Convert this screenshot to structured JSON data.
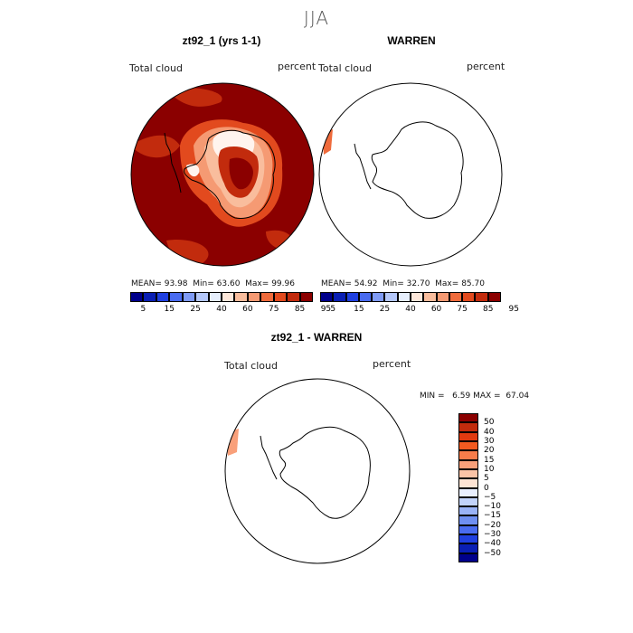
{
  "season": "JJA",
  "panels": [
    {
      "title": "zt92_1 (yrs 1-1)",
      "variable": "Total cloud",
      "units": "percent",
      "stats": {
        "mean_label": "MEAN=",
        "mean": "93.98",
        "min_label": "Min=",
        "min": "63.60",
        "max_label": "Max=",
        "max": "99.96"
      }
    },
    {
      "title": "WARREN",
      "variable": "Total cloud",
      "units": "percent",
      "stats": {
        "mean_label": "MEAN=",
        "mean": "54.92",
        "min_label": "Min=",
        "min": "32.70",
        "max_label": "Max=",
        "max": "85.70"
      }
    },
    {
      "title": "zt92_1 - WARREN",
      "variable": "Total cloud",
      "units": "percent",
      "stats": {
        "min_label": "MIN =",
        "min": "6.59",
        "max_label": "MAX =",
        "max": "67.04"
      }
    }
  ],
  "colorbar_abs": {
    "ticks": [
      "5",
      "15",
      "25",
      "40",
      "60",
      "75",
      "85",
      "95"
    ],
    "colors": [
      "#00008b",
      "#0a1fb4",
      "#2040e0",
      "#4a6cf0",
      "#7f9bf5",
      "#b5c8fa",
      "#e6eefc",
      "#fde7da",
      "#f9bd9d",
      "#f59a73",
      "#ef6b3c",
      "#e24a1e",
      "#c22b0d",
      "#8b0000"
    ]
  },
  "colorbar_diff": {
    "ticks": [
      "50",
      "40",
      "30",
      "20",
      "15",
      "10",
      "5",
      "0",
      "−5",
      "−10",
      "−15",
      "−20",
      "−30",
      "−40",
      "−50"
    ],
    "colors": [
      "#8b0000",
      "#c22b0d",
      "#e23a10",
      "#f25a20",
      "#f87c4a",
      "#f9a07a",
      "#fbc3a6",
      "#fde3d3",
      "#e9efff",
      "#c2d3fb",
      "#9ab3f7",
      "#6f8ff1",
      "#4a6cf0",
      "#2040e0",
      "#0a1fb4",
      "#00008b"
    ]
  },
  "map_fill_colors": {
    "background": "#8b0000",
    "mid": "#c22b0d",
    "light": "#ef6b3c",
    "pale": "#f9bd9d",
    "white": "#fff4ee",
    "coast": "#000000"
  }
}
